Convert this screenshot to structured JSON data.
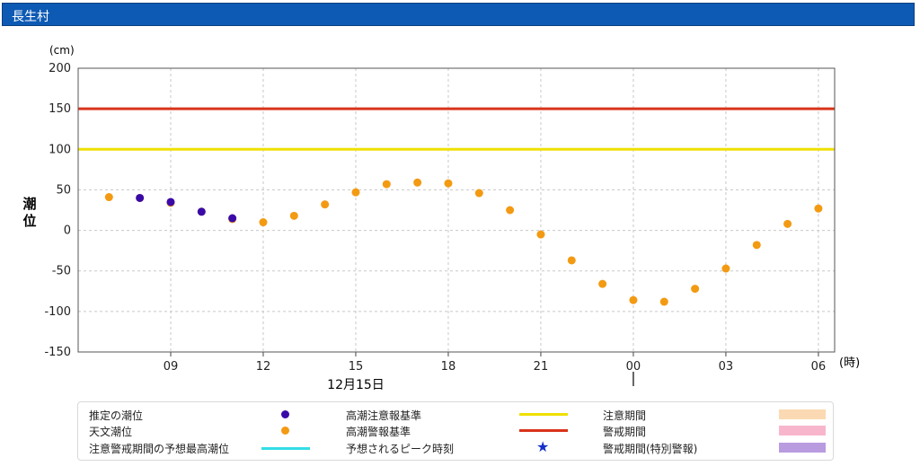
{
  "header": {
    "title": "長生村"
  },
  "chart_data": {
    "type": "scatter",
    "y_unit": "(cm)",
    "ylabel": "潮位",
    "x_unit": "(時)",
    "date_label": "12月15日",
    "ylim": [
      -150,
      200
    ],
    "yticks": [
      -150,
      -100,
      -50,
      0,
      50,
      100,
      150,
      200
    ],
    "xticks": [
      "09",
      "12",
      "15",
      "18",
      "21",
      "00",
      "03",
      "06"
    ],
    "grid": true,
    "thresholds": [
      {
        "name": "高潮注意報基準",
        "value": 100,
        "color": "#f0e000"
      },
      {
        "name": "高潮警報基準",
        "value": 150,
        "color": "#d9331a"
      }
    ],
    "series": [
      {
        "name": "推定の潮位",
        "color": "#3a0aa8",
        "x": [
          "08",
          "09",
          "10",
          "11"
        ],
        "values": [
          40,
          35,
          23,
          15
        ]
      },
      {
        "name": "天文潮位",
        "color": "#f39a13",
        "x": [
          "07",
          "08",
          "09",
          "10",
          "11",
          "12",
          "13",
          "14",
          "15",
          "16",
          "17",
          "18",
          "19",
          "20",
          "21",
          "22",
          "23",
          "00",
          "01",
          "02",
          "03",
          "04",
          "05",
          "06"
        ],
        "values": [
          41,
          40,
          34,
          23,
          14,
          10,
          18,
          32,
          47,
          57,
          59,
          58,
          46,
          25,
          -5,
          -37,
          -66,
          -86,
          -88,
          -72,
          -47,
          -18,
          8,
          27
        ]
      }
    ]
  },
  "legend": {
    "items": [
      {
        "label": "推定の潮位",
        "symbol": "dot",
        "color": "#3a0aa8"
      },
      {
        "label": "天文潮位",
        "symbol": "dot",
        "color": "#f39a13"
      },
      {
        "label": "注意警戒期間の予想最高潮位",
        "symbol": "line",
        "color": "#33dde6"
      },
      {
        "label": "高潮注意報基準",
        "symbol": "line",
        "color": "#f0e000"
      },
      {
        "label": "高潮警報基準",
        "symbol": "line",
        "color": "#d9331a"
      },
      {
        "label": "予想されるピーク時刻",
        "symbol": "star",
        "color": "#1530c8"
      },
      {
        "label": "注意期間",
        "symbol": "swatch",
        "color": "#fbd9b2"
      },
      {
        "label": "警戒期間",
        "symbol": "swatch",
        "color": "#f8b6cd"
      },
      {
        "label": "警戒期間(特別警報)",
        "symbol": "swatch",
        "color": "#b99be0"
      }
    ]
  }
}
